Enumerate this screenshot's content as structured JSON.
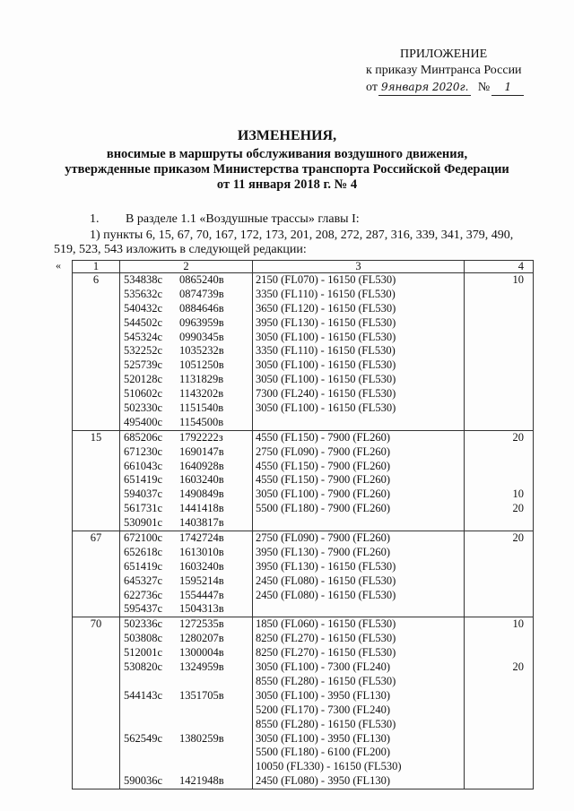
{
  "header": {
    "appendix": "ПРИЛОЖЕНИЕ",
    "order_of": "к приказу Минтранса России",
    "from_label": "от",
    "date_handwritten": "9января 2020г.",
    "number_label": "№",
    "number_handwritten": "1"
  },
  "title": {
    "line1": "ИЗМЕНЕНИЯ,",
    "line2": "вносимые в маршруты обслуживания воздушного движения,",
    "line3": "утвержденные приказом Министерства транспорта Российской Федерации",
    "line4": "от 11 января 2018 г. № 4"
  },
  "body": {
    "item_num": "1.",
    "item_text": "В разделе 1.1 «Воздушные трассы» главы I:",
    "sub_line1": "1) пункты 6, 15, 67, 70, 167, 172, 173, 201, 208, 272, 287, 316, 339, 341, 379, 490,",
    "sub_line2": "519, 523, 543 изложить в следующей редакции:",
    "open_quote": "«"
  },
  "table": {
    "headers": [
      "1",
      "2",
      "3",
      "4"
    ],
    "groups": [
      {
        "num": "6",
        "coords": [
          [
            "534838с",
            "0865240в"
          ],
          [
            "535632с",
            "0874739в"
          ],
          [
            "540432с",
            "0884646в"
          ],
          [
            "544502с",
            "0963959в"
          ],
          [
            "545324с",
            "0990345в"
          ],
          [
            "532252с",
            "1035232в"
          ],
          [
            "525739с",
            "1051250в"
          ],
          [
            "520128с",
            "1131829в"
          ],
          [
            "510602с",
            "1143202в"
          ],
          [
            "502330с",
            "1151540в"
          ],
          [
            "495400с",
            "1154500в"
          ]
        ],
        "levels": [
          "2150 (FL070) - 16150 (FL530)",
          "3350 (FL110) - 16150 (FL530)",
          "3650 (FL120) - 16150 (FL530)",
          "3950 (FL130) - 16150 (FL530)",
          "3050 (FL100) - 16150 (FL530)",
          "3350 (FL110) - 16150 (FL530)",
          "3050 (FL100) - 16150 (FL530)",
          "3050 (FL100) - 16150 (FL530)",
          "7300 (FL240) - 16150 (FL530)",
          "3050 (FL100) - 16150 (FL530)",
          ""
        ],
        "col4": [
          "10",
          "",
          "",
          "",
          "",
          "",
          "",
          "",
          "",
          "",
          ""
        ]
      },
      {
        "num": "15",
        "coords": [
          [
            "685206с",
            "1792222з"
          ],
          [
            "671230с",
            "1690147в"
          ],
          [
            "661043с",
            "1640928в"
          ],
          [
            "651419с",
            "1603240в"
          ],
          [
            "594037с",
            "1490849в"
          ],
          [
            "561731с",
            "1441418в"
          ],
          [
            "530901с",
            "1403817в"
          ]
        ],
        "levels": [
          "4550 (FL150) - 7900 (FL260)",
          "2750 (FL090) - 7900 (FL260)",
          "4550 (FL150) - 7900 (FL260)",
          "4550 (FL150) - 7900 (FL260)",
          "3050 (FL100) - 7900 (FL260)",
          "5500 (FL180) - 7900 (FL260)",
          ""
        ],
        "col4": [
          "20",
          "",
          "",
          "",
          "10",
          "20",
          ""
        ]
      },
      {
        "num": "67",
        "coords": [
          [
            "672100с",
            "1742724в"
          ],
          [
            "652618с",
            "1613010в"
          ],
          [
            "651419с",
            "1603240в"
          ],
          [
            "645327с",
            "1595214в"
          ],
          [
            "622736с",
            "1554447в"
          ],
          [
            "595437с",
            "1504313в"
          ]
        ],
        "levels": [
          "2750 (FL090) - 7900 (FL260)",
          "3950 (FL130) - 7900 (FL260)",
          "3950 (FL130) - 16150 (FL530)",
          "2450 (FL080) - 16150 (FL530)",
          "2450 (FL080) - 16150 (FL530)",
          ""
        ],
        "col4": [
          "20",
          "",
          "",
          "",
          "",
          ""
        ]
      },
      {
        "num": "70",
        "coords": [
          [
            "502336с",
            "1272535в"
          ],
          [
            "503808с",
            "1280207в"
          ],
          [
            "512001с",
            "1300004в"
          ],
          [
            "530820с",
            "1324959в"
          ],
          [
            "",
            ""
          ],
          [
            "544143с",
            "1351705в"
          ],
          [
            "",
            ""
          ],
          [
            "",
            ""
          ],
          [
            "562549с",
            "1380259в"
          ],
          [
            "",
            ""
          ],
          [
            "",
            ""
          ],
          [
            "590036с",
            "1421948в"
          ]
        ],
        "levels": [
          "1850 (FL060) - 16150 (FL530)",
          "8250 (FL270) - 16150 (FL530)",
          "8250 (FL270) - 16150 (FL530)",
          "3050 (FL100) - 7300 (FL240)",
          "8550 (FL280) - 16150 (FL530)",
          "3050 (FL100) - 3950 (FL130)",
          "5200 (FL170) - 7300 (FL240)",
          "8550 (FL280) - 16150 (FL530)",
          "3050 (FL100) - 3950 (FL130)",
          "5500 (FL180) - 6100 (FL200)",
          "10050 (FL330) - 16150 (FL530)",
          "2450 (FL080) - 3950 (FL130)"
        ],
        "col4": [
          "10",
          "",
          "",
          "20",
          "",
          "",
          "",
          "",
          "",
          "",
          "",
          ""
        ]
      }
    ]
  }
}
